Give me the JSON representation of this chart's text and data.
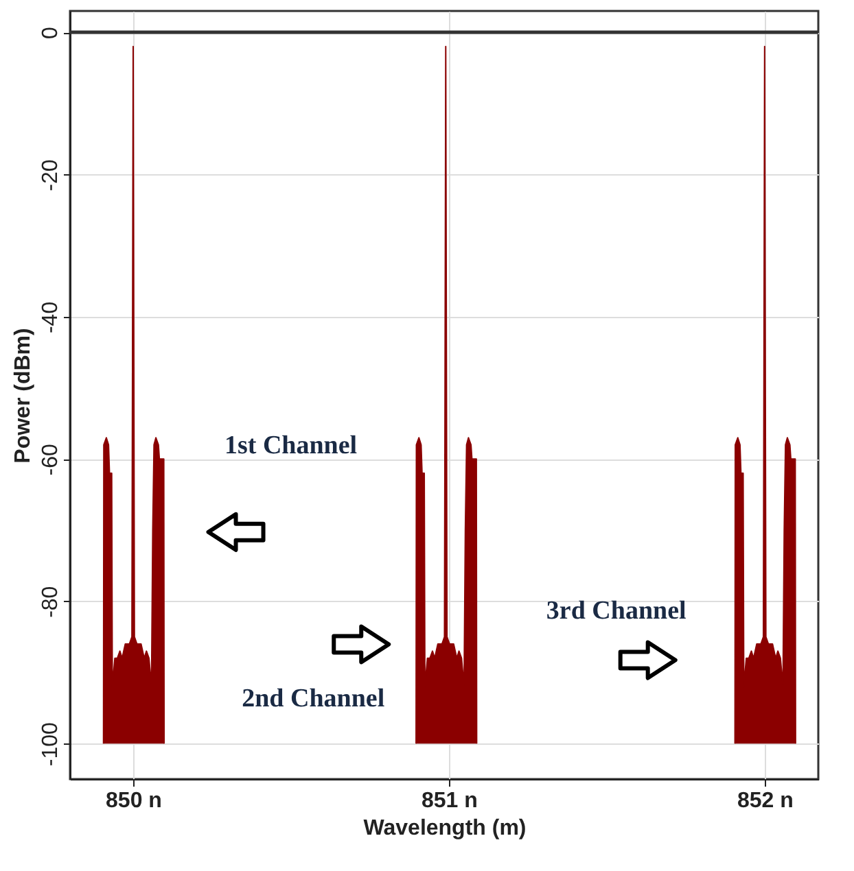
{
  "chart_data": {
    "type": "area",
    "xlabel": "Wavelength (m)",
    "ylabel": "Power (dBm)",
    "xlim": [
      849.8,
      852.17
    ],
    "ylim": [
      -105,
      3
    ],
    "xticks": [
      {
        "value": 850,
        "label": "850 n"
      },
      {
        "value": 851,
        "label": "851 n"
      },
      {
        "value": 852,
        "label": "852 n"
      }
    ],
    "yticks": [
      0,
      -20,
      -40,
      -60,
      -80,
      -100
    ],
    "grid": true,
    "ref_lines": [
      {
        "axis": "y",
        "value": 0,
        "color": "#333333"
      }
    ],
    "annotations": [
      "1st Channel",
      "2nd Channel",
      "3rd Channel"
    ],
    "series": [
      {
        "color": "#8b0000",
        "x": [
          849.906,
          849.907,
          849.915,
          849.922,
          849.925,
          849.932,
          849.934,
          849.942,
          849.95,
          849.958,
          849.965,
          849.975,
          849.988,
          849.996,
          850.0,
          850.004,
          850.012,
          850.025,
          850.035,
          850.042,
          850.05,
          850.058,
          850.062,
          850.066,
          850.072,
          850.08,
          850.083,
          850.097,
          850.098
        ],
        "values": [
          -100,
          -58,
          -57,
          -58,
          -62,
          -62,
          -92,
          -88,
          -88,
          -87,
          -88,
          -86,
          -86,
          -85,
          -2,
          -85,
          -86,
          -86,
          -88,
          -87,
          -88,
          -92,
          -70,
          -58,
          -57,
          -58,
          -60,
          -60,
          -100
        ]
      },
      {
        "color": "#8b0000",
        "x": [
          850.896,
          850.897,
          850.905,
          850.912,
          850.915,
          850.922,
          850.924,
          850.932,
          850.94,
          850.948,
          850.955,
          850.965,
          850.978,
          850.986,
          850.99,
          850.994,
          851.002,
          851.015,
          851.025,
          851.032,
          851.04,
          851.048,
          851.052,
          851.056,
          851.062,
          851.07,
          851.073,
          851.087,
          851.088
        ],
        "values": [
          -100,
          -58,
          -57,
          -58,
          -62,
          -62,
          -92,
          -88,
          -88,
          -87,
          -88,
          -86,
          -86,
          -85,
          -2,
          -85,
          -86,
          -86,
          -88,
          -87,
          -88,
          -92,
          -70,
          -58,
          -57,
          -58,
          -60,
          -60,
          -100
        ]
      },
      {
        "color": "#8b0000",
        "x": [
          851.906,
          851.907,
          851.915,
          851.922,
          851.925,
          851.932,
          851.934,
          851.942,
          851.95,
          851.958,
          851.965,
          851.975,
          851.988,
          851.996,
          852.0,
          852.004,
          852.012,
          852.025,
          852.035,
          852.042,
          852.05,
          852.058,
          852.062,
          852.066,
          852.072,
          852.08,
          852.083,
          852.097,
          852.098
        ],
        "values": [
          -100,
          -58,
          -57,
          -58,
          -62,
          -62,
          -92,
          -88,
          -88,
          -87,
          -88,
          -86,
          -86,
          -85,
          -2,
          -85,
          -86,
          -86,
          -88,
          -87,
          -88,
          -92,
          -70,
          -58,
          -57,
          -58,
          -60,
          -60,
          -100
        ]
      }
    ]
  }
}
